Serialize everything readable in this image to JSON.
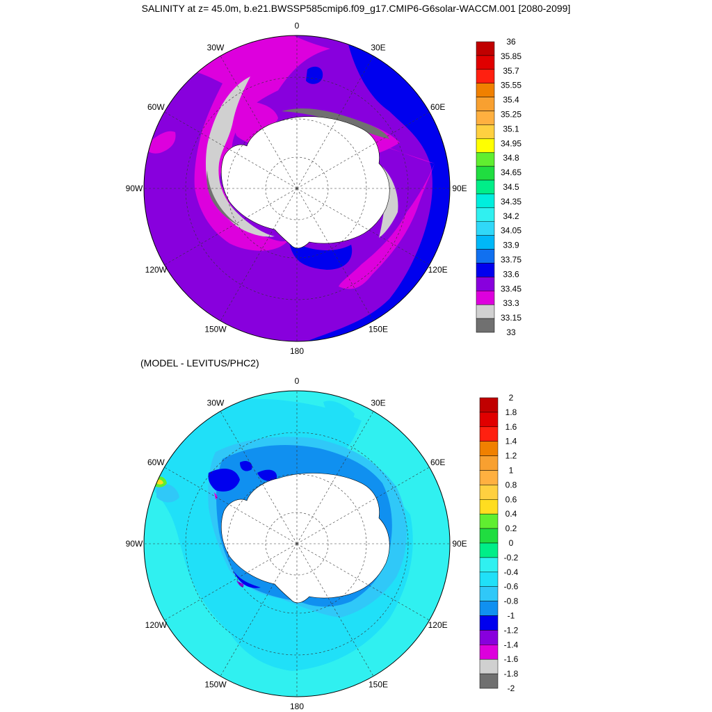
{
  "title": "SALINITY at z=  45.0m, b.e21.BWSSP585cmip6.f09_g17.CMIP6-G6solar-WACCM.001 [2080-2099]",
  "subtitle": "(MODEL - LEVITUS/PHC2)",
  "lon_labels": [
    "0",
    "30E",
    "60E",
    "90E",
    "120E",
    "150E",
    "180",
    "150W",
    "120W",
    "90W",
    "60W",
    "30W"
  ],
  "top_map": {
    "colorbar": {
      "labels": [
        "36",
        "35.85",
        "35.7",
        "35.55",
        "35.4",
        "35.25",
        "35.1",
        "34.95",
        "34.8",
        "34.65",
        "34.5",
        "34.35",
        "34.2",
        "34.05",
        "33.9",
        "33.75",
        "33.6",
        "33.45",
        "33.3",
        "33.15",
        "33"
      ],
      "colors": [
        "#c00000",
        "#e00000",
        "#ff2010",
        "#f08000",
        "#f8a030",
        "#ffb040",
        "#ffd040",
        "#ffff00",
        "#60ee30",
        "#20dd40",
        "#00ee88",
        "#00eedd",
        "#30f0f0",
        "#30d8f8",
        "#00b8f8",
        "#1070f0",
        "#0000ee",
        "#8800dd",
        "#dd00dd",
        "#d0d0d0",
        "#707070"
      ]
    }
  },
  "bottom_map": {
    "colorbar": {
      "labels": [
        "2",
        "1.8",
        "1.6",
        "1.4",
        "1.2",
        "1",
        "0.8",
        "0.6",
        "0.4",
        "0.2",
        "0",
        "-0.2",
        "-0.4",
        "-0.6",
        "-0.8",
        "-1",
        "-1.2",
        "-1.4",
        "-1.6",
        "-1.8",
        "-2"
      ],
      "colors": [
        "#c00000",
        "#e00000",
        "#ff2010",
        "#f08000",
        "#f8a030",
        "#ffb040",
        "#ffd040",
        "#ffdd20",
        "#60ee30",
        "#20dd40",
        "#00ee88",
        "#30f0f0",
        "#20e0f8",
        "#30c8f8",
        "#1090f0",
        "#0000ee",
        "#8800dd",
        "#dd00dd",
        "#d0d0d0",
        "#707070"
      ]
    }
  }
}
